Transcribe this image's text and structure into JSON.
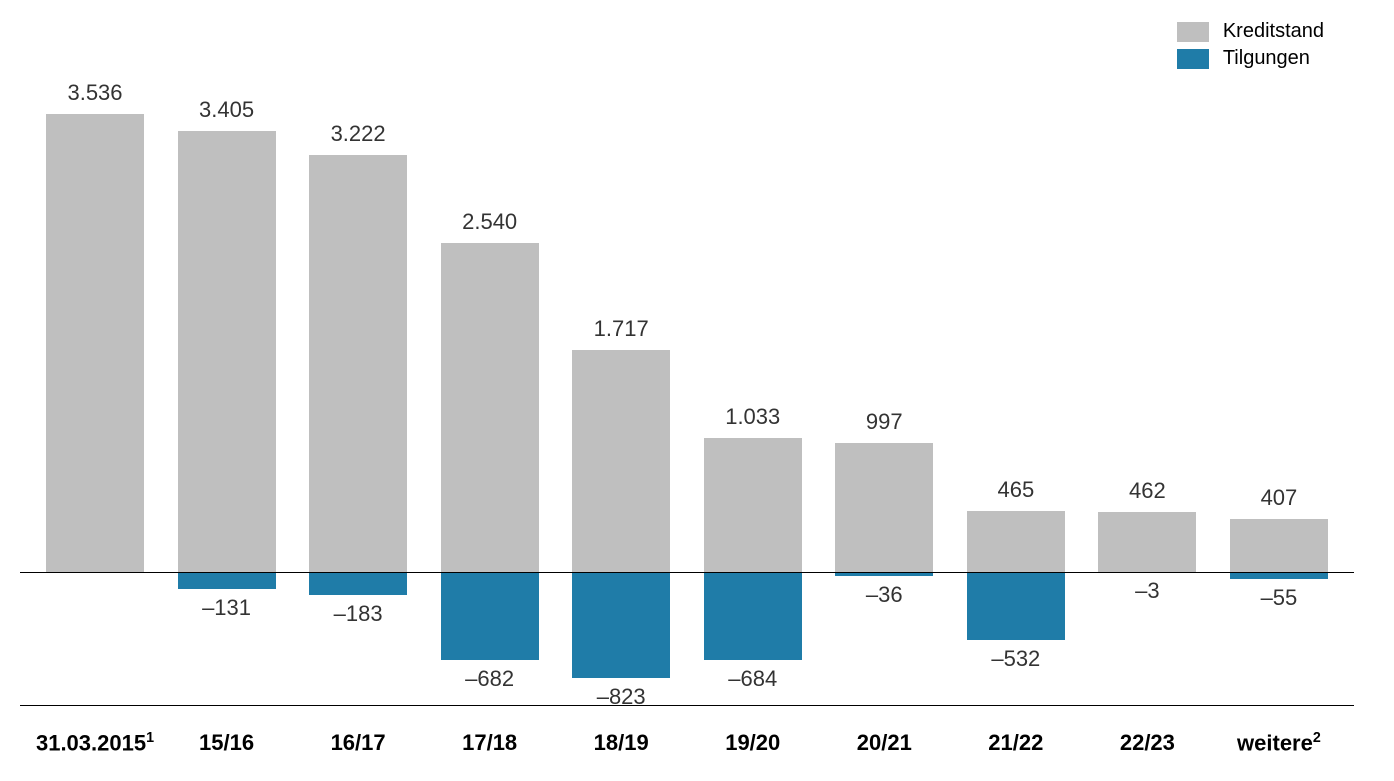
{
  "chart": {
    "type": "bar",
    "background_color": "#ffffff",
    "baseline_color": "#000000",
    "label_fontsize": 22,
    "legend_fontsize": 20,
    "legend": [
      {
        "label": "Kreditstand",
        "color": "#bfbfbf"
      },
      {
        "label": "Tilgungen",
        "color": "#1f7ca8"
      }
    ],
    "colors": {
      "kreditstand": "#bfbfbf",
      "tilgungen": "#1f7ca8",
      "text": "#333333",
      "axis_text": "#000000"
    },
    "y_max": 3800,
    "y_min": -1000,
    "categories": [
      {
        "label": "31.03.2015",
        "sup": "1",
        "kreditstand": 3536,
        "kreditstand_label": "3.536",
        "tilgungen": null,
        "tilgungen_label": ""
      },
      {
        "label": "15/16",
        "sup": "",
        "kreditstand": 3405,
        "kreditstand_label": "3.405",
        "tilgungen": -131,
        "tilgungen_label": "–131"
      },
      {
        "label": "16/17",
        "sup": "",
        "kreditstand": 3222,
        "kreditstand_label": "3.222",
        "tilgungen": -183,
        "tilgungen_label": "–183"
      },
      {
        "label": "17/18",
        "sup": "",
        "kreditstand": 2540,
        "kreditstand_label": "2.540",
        "tilgungen": -682,
        "tilgungen_label": "–682"
      },
      {
        "label": "18/19",
        "sup": "",
        "kreditstand": 1717,
        "kreditstand_label": "1.717",
        "tilgungen": -823,
        "tilgungen_label": "–823"
      },
      {
        "label": "19/20",
        "sup": "",
        "kreditstand": 1033,
        "kreditstand_label": "1.033",
        "tilgungen": -684,
        "tilgungen_label": "–684"
      },
      {
        "label": "20/21",
        "sup": "",
        "kreditstand": 997,
        "kreditstand_label": "997",
        "tilgungen": -36,
        "tilgungen_label": "–36"
      },
      {
        "label": "21/22",
        "sup": "",
        "kreditstand": 465,
        "kreditstand_label": "465",
        "tilgungen": -532,
        "tilgungen_label": "–532"
      },
      {
        "label": "22/23",
        "sup": "",
        "kreditstand": 462,
        "kreditstand_label": "462",
        "tilgungen": -3,
        "tilgungen_label": "–3"
      },
      {
        "label": "weitere",
        "sup": "2",
        "kreditstand": 407,
        "kreditstand_label": "407",
        "tilgungen": -55,
        "tilgungen_label": "–55"
      }
    ]
  }
}
